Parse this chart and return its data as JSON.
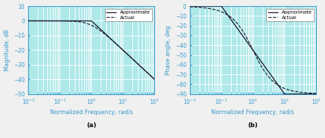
{
  "freq_range": [
    0.01,
    100
  ],
  "magnitude_ylim": [
    -50,
    10
  ],
  "magnitude_yticks": [
    -50,
    -40,
    -30,
    -20,
    -10,
    0,
    10
  ],
  "phase_ylim": [
    -90,
    0
  ],
  "phase_yticks": [
    -90,
    -80,
    -70,
    -60,
    -50,
    -40,
    -30,
    -20,
    -10,
    0
  ],
  "xlabel": "Normalized Frequency, rad/s",
  "ylabel_a": "Magnitude, dB",
  "ylabel_b": "Phase angle, deg",
  "label_a": "(a)",
  "label_b": "(b)",
  "legend_approx": "Approximate",
  "legend_actual": "Actual",
  "bg_color": "#aee8e8",
  "fig_color": "#f0f0f0",
  "grid_color": "#ffffff",
  "line_color": "#1a1a2e",
  "tick_label_color": "#3399cc",
  "axis_label_color": "#3399cc",
  "fontsize": 6.5
}
